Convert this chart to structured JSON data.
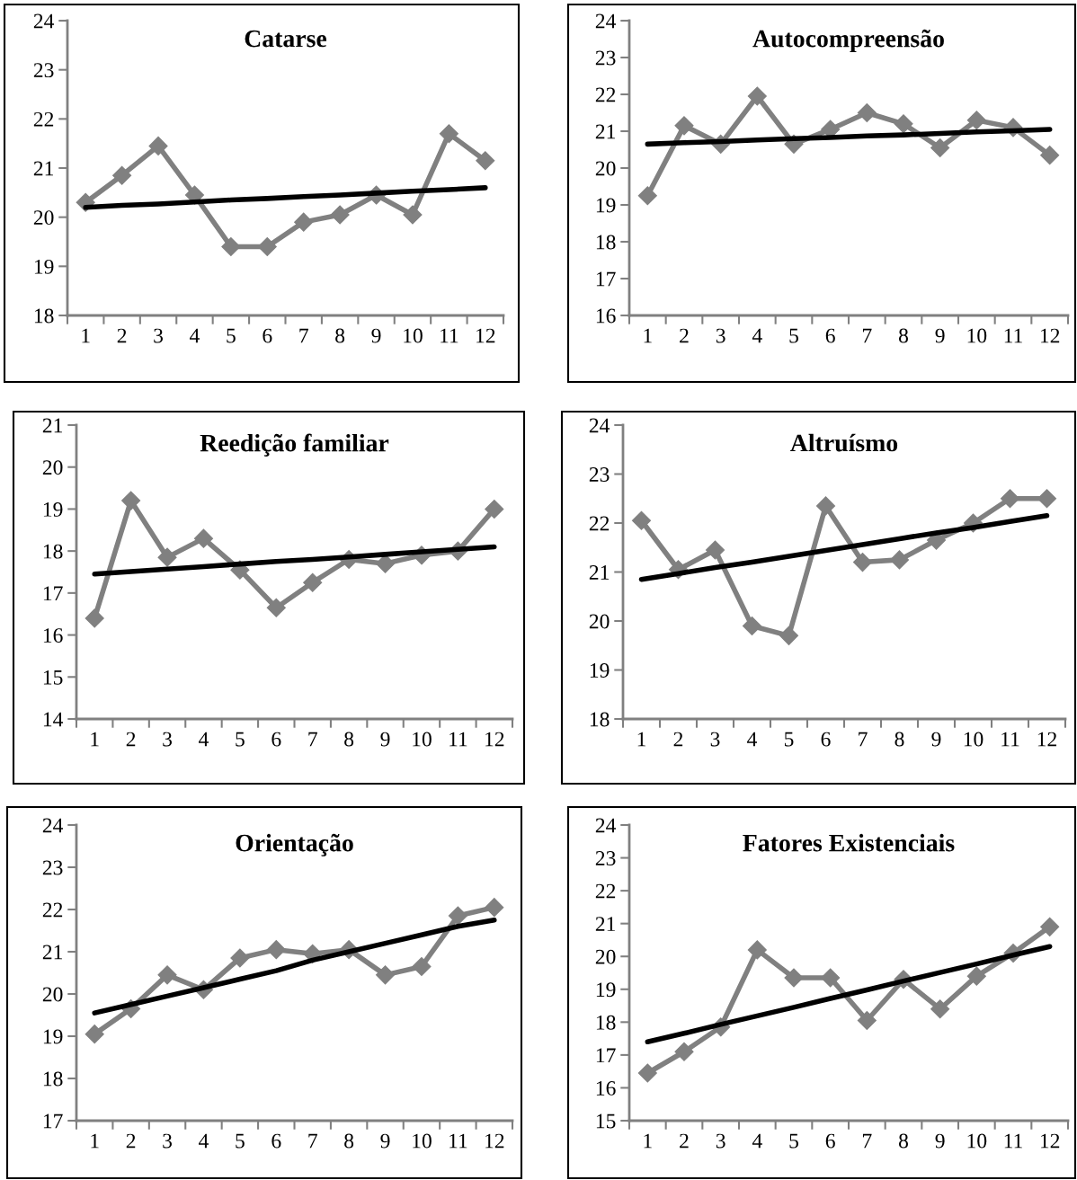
{
  "chart_data": [
    {
      "type": "line",
      "title": "Catarse",
      "categories": [
        "1",
        "2",
        "3",
        "4",
        "5",
        "6",
        "7",
        "8",
        "9",
        "10",
        "11",
        "12"
      ],
      "ylim": [
        18,
        24
      ],
      "yticks": [
        18,
        19,
        20,
        21,
        22,
        23,
        24
      ],
      "grid": false,
      "series": [
        {
          "color": "#808080",
          "marker": "diamond",
          "values": [
            20.3,
            20.85,
            21.45,
            20.45,
            19.4,
            19.4,
            19.9,
            20.05,
            20.45,
            20.05,
            21.7,
            21.15
          ]
        },
        {
          "color": "#000000",
          "marker": "none",
          "values": [
            20.2,
            20.24,
            20.27,
            20.31,
            20.35,
            20.38,
            20.42,
            20.45,
            20.49,
            20.53,
            20.56,
            20.6
          ]
        }
      ]
    },
    {
      "type": "line",
      "title": "Autocompreensão",
      "categories": [
        "1",
        "2",
        "3",
        "4",
        "5",
        "6",
        "7",
        "8",
        "9",
        "10",
        "11",
        "12"
      ],
      "ylim": [
        16,
        24
      ],
      "yticks": [
        16,
        17,
        18,
        19,
        20,
        21,
        22,
        23,
        24
      ],
      "grid": false,
      "series": [
        {
          "color": "#808080",
          "marker": "diamond",
          "values": [
            19.25,
            21.15,
            20.65,
            21.95,
            20.65,
            21.05,
            21.5,
            21.2,
            20.55,
            21.3,
            21.1,
            20.35
          ]
        },
        {
          "color": "#000000",
          "marker": "none",
          "values": [
            20.65,
            20.69,
            20.72,
            20.76,
            20.8,
            20.83,
            20.87,
            20.9,
            20.94,
            20.98,
            21.01,
            21.05
          ]
        }
      ]
    },
    {
      "type": "line",
      "title": "Reedição familiar",
      "categories": [
        "1",
        "2",
        "3",
        "4",
        "5",
        "6",
        "7",
        "8",
        "9",
        "10",
        "11",
        "12"
      ],
      "ylim": [
        14,
        21
      ],
      "yticks": [
        14,
        15,
        16,
        17,
        18,
        19,
        20,
        21
      ],
      "grid": false,
      "series": [
        {
          "color": "#808080",
          "marker": "diamond",
          "values": [
            16.4,
            19.2,
            17.85,
            18.3,
            17.55,
            16.65,
            17.25,
            17.8,
            17.7,
            17.9,
            18.0,
            19.0
          ]
        },
        {
          "color": "#000000",
          "marker": "none",
          "values": [
            17.45,
            17.51,
            17.57,
            17.63,
            17.69,
            17.75,
            17.8,
            17.86,
            17.92,
            17.98,
            18.04,
            18.1
          ]
        }
      ]
    },
    {
      "type": "line",
      "title": "Altruísmo",
      "categories": [
        "1",
        "2",
        "3",
        "4",
        "5",
        "6",
        "7",
        "8",
        "9",
        "10",
        "11",
        "12"
      ],
      "ylim": [
        18,
        24
      ],
      "yticks": [
        18,
        19,
        20,
        21,
        22,
        23,
        24
      ],
      "grid": false,
      "series": [
        {
          "color": "#808080",
          "marker": "diamond",
          "values": [
            22.05,
            21.05,
            21.45,
            19.9,
            19.7,
            22.35,
            21.2,
            21.25,
            21.65,
            22.0,
            22.5,
            22.5
          ]
        },
        {
          "color": "#000000",
          "marker": "none",
          "values": [
            20.85,
            20.97,
            21.09,
            21.2,
            21.32,
            21.44,
            21.56,
            21.68,
            21.8,
            21.91,
            22.03,
            22.15
          ]
        }
      ]
    },
    {
      "type": "line",
      "title": "Orientação",
      "categories": [
        "1",
        "2",
        "3",
        "4",
        "5",
        "6",
        "7",
        "8",
        "9",
        "10",
        "11",
        "12"
      ],
      "ylim": [
        17,
        24
      ],
      "yticks": [
        17,
        18,
        19,
        20,
        21,
        22,
        23,
        24
      ],
      "grid": false,
      "series": [
        {
          "color": "#808080",
          "marker": "diamond",
          "values": [
            19.05,
            19.65,
            20.45,
            20.1,
            20.85,
            21.05,
            20.95,
            21.05,
            20.45,
            20.65,
            21.85,
            22.05
          ]
        },
        {
          "color": "#000000",
          "marker": "none",
          "values": [
            19.55,
            19.75,
            19.95,
            20.15,
            20.35,
            20.55,
            20.8,
            21.0,
            21.2,
            21.4,
            21.6,
            21.75
          ]
        }
      ]
    },
    {
      "type": "line",
      "title": "Fatores Existenciais",
      "categories": [
        "1",
        "2",
        "3",
        "4",
        "5",
        "6",
        "7",
        "8",
        "9",
        "10",
        "11",
        "12"
      ],
      "ylim": [
        15,
        24
      ],
      "yticks": [
        15,
        16,
        17,
        18,
        19,
        20,
        21,
        22,
        23,
        24
      ],
      "grid": false,
      "series": [
        {
          "color": "#808080",
          "marker": "diamond",
          "values": [
            16.45,
            17.1,
            17.85,
            20.2,
            19.35,
            19.35,
            18.05,
            19.3,
            18.4,
            19.4,
            20.1,
            20.9
          ]
        },
        {
          "color": "#000000",
          "marker": "none",
          "values": [
            17.4,
            17.66,
            17.93,
            18.19,
            18.45,
            18.72,
            18.98,
            19.25,
            19.51,
            19.77,
            20.04,
            20.3
          ]
        }
      ]
    }
  ]
}
